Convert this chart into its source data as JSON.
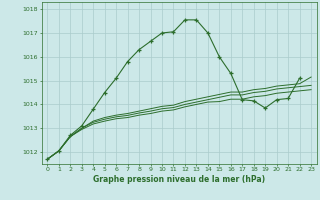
{
  "title": "Graphe pression niveau de la mer (hPa)",
  "bg_color": "#cce8e8",
  "grid_color": "#aacccc",
  "line_color": "#2d6e2d",
  "xlim": [
    -0.5,
    23.5
  ],
  "ylim": [
    1011.5,
    1018.3
  ],
  "yticks": [
    1012,
    1013,
    1014,
    1015,
    1016,
    1017,
    1018
  ],
  "xticks": [
    0,
    1,
    2,
    3,
    4,
    5,
    6,
    7,
    8,
    9,
    10,
    11,
    12,
    13,
    14,
    15,
    16,
    17,
    18,
    19,
    20,
    21,
    22,
    23
  ],
  "series": [
    {
      "x": [
        0,
        1,
        2,
        3,
        4,
        5,
        6,
        7,
        8,
        9,
        10,
        11,
        12,
        13,
        14,
        15,
        16,
        17,
        18,
        19,
        20,
        21,
        22
      ],
      "y": [
        1011.7,
        1012.05,
        1012.7,
        1013.1,
        1013.8,
        1014.5,
        1015.1,
        1015.8,
        1016.3,
        1016.65,
        1017.0,
        1017.05,
        1017.55,
        1017.55,
        1017.0,
        1016.0,
        1015.3,
        1014.2,
        1014.15,
        1013.85,
        1014.2,
        1014.25,
        1015.1
      ],
      "marker": true
    },
    {
      "x": [
        0,
        1,
        2,
        3,
        4,
        5,
        6,
        7,
        8,
        9,
        10,
        11,
        12,
        13,
        14,
        15,
        16,
        17,
        18,
        19,
        20,
        21,
        22,
        23
      ],
      "y": [
        1011.7,
        1012.05,
        1012.65,
        1013.0,
        1013.3,
        1013.45,
        1013.55,
        1013.62,
        1013.72,
        1013.82,
        1013.92,
        1013.97,
        1014.12,
        1014.22,
        1014.32,
        1014.42,
        1014.52,
        1014.52,
        1014.62,
        1014.67,
        1014.77,
        1014.82,
        1014.87,
        1015.15
      ],
      "marker": false
    },
    {
      "x": [
        0,
        1,
        2,
        3,
        4,
        5,
        6,
        7,
        8,
        9,
        10,
        11,
        12,
        13,
        14,
        15,
        16,
        17,
        18,
        19,
        20,
        21,
        22,
        23
      ],
      "y": [
        1011.7,
        1012.05,
        1012.65,
        1013.0,
        1013.25,
        1013.38,
        1013.48,
        1013.54,
        1013.64,
        1013.72,
        1013.82,
        1013.87,
        1014.0,
        1014.1,
        1014.2,
        1014.3,
        1014.4,
        1014.4,
        1014.5,
        1014.55,
        1014.65,
        1014.7,
        1014.75,
        1014.8
      ],
      "marker": false
    },
    {
      "x": [
        0,
        1,
        2,
        3,
        4,
        5,
        6,
        7,
        8,
        9,
        10,
        11,
        12,
        13,
        14,
        15,
        16,
        17,
        18,
        19,
        20,
        21,
        22,
        23
      ],
      "y": [
        1011.7,
        1012.05,
        1012.65,
        1012.95,
        1013.18,
        1013.3,
        1013.4,
        1013.45,
        1013.55,
        1013.62,
        1013.72,
        1013.77,
        1013.9,
        1014.0,
        1014.1,
        1014.12,
        1014.22,
        1014.22,
        1014.32,
        1014.37,
        1014.47,
        1014.52,
        1014.57,
        1014.62
      ],
      "marker": false
    }
  ]
}
